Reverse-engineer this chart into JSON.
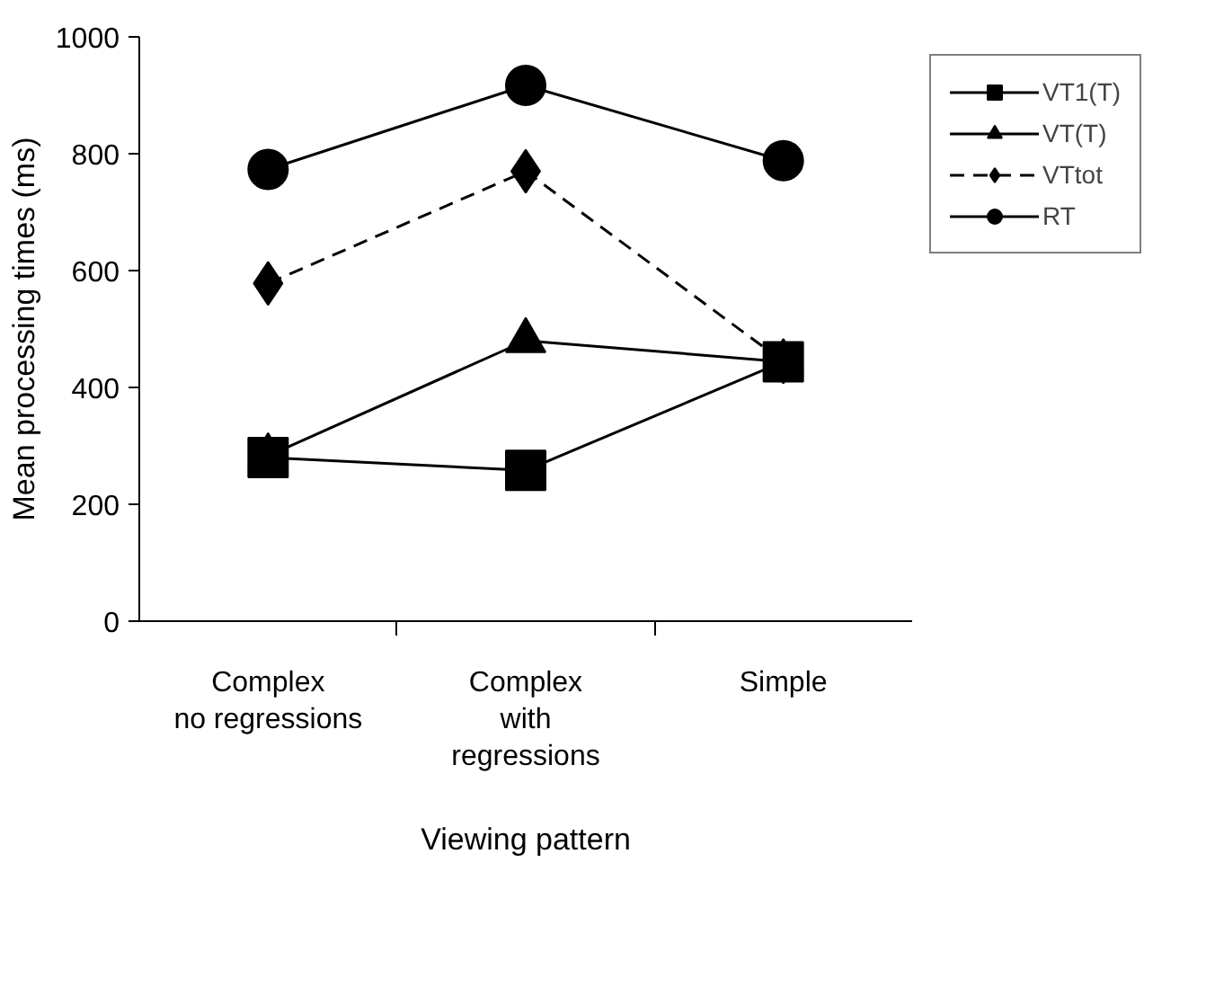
{
  "chart_data": {
    "type": "line",
    "xlabel": "Viewing pattern",
    "ylabel": "Mean processing times (ms)",
    "categories": [
      "Complex\nno regressions",
      "Complex\nwith\nregressions",
      "Simple"
    ],
    "ylim": [
      0,
      1000
    ],
    "yticks": [
      0,
      200,
      400,
      600,
      800,
      1000
    ],
    "grid": false,
    "legend": "top right",
    "series": [
      {
        "name": "VT1(T)",
        "color": "#000000",
        "marker": "square",
        "line_style": "solid",
        "values": [
          280,
          258,
          444
        ]
      },
      {
        "name": "VT(T)",
        "color": "#000000",
        "marker": "triangle",
        "line_style": "solid",
        "values": [
          283,
          480,
          444
        ]
      },
      {
        "name": "VTtot",
        "color": "#000000",
        "marker": "diamond",
        "line_style": "dashed",
        "values": [
          578,
          770,
          444
        ]
      },
      {
        "name": "RT",
        "color": "#000000",
        "marker": "circle",
        "line_style": "solid",
        "values": [
          773,
          917,
          788
        ]
      }
    ]
  }
}
